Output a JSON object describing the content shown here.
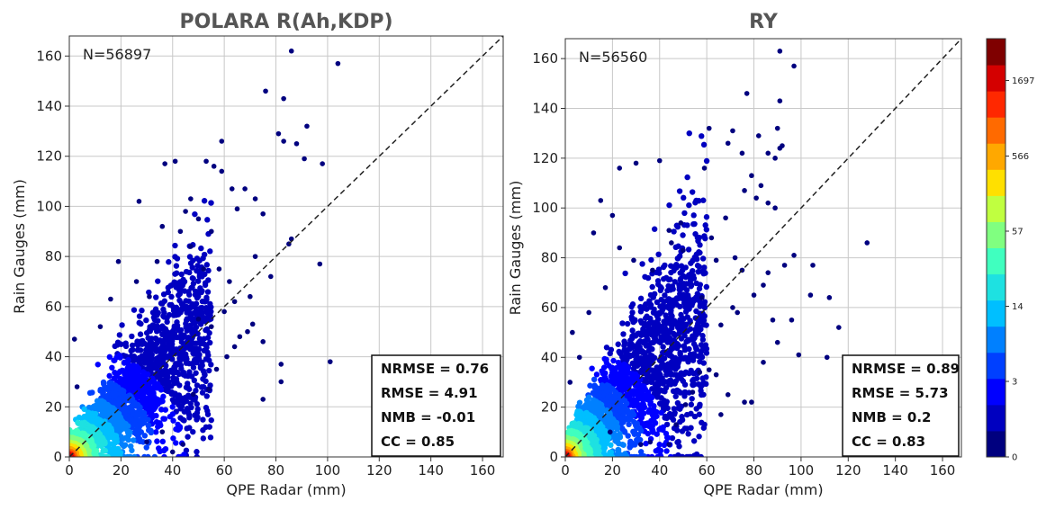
{
  "chart_data": [
    {
      "type": "scatter",
      "title": "POLARA R(Ah,KDP)",
      "xlabel": "QPE Radar (mm)",
      "ylabel": "Rain Gauges (mm)",
      "xlim": [
        0,
        168
      ],
      "ylim": [
        0,
        168
      ],
      "xticks": [
        0,
        20,
        40,
        60,
        80,
        100,
        120,
        140,
        160
      ],
      "yticks": [
        0,
        20,
        40,
        60,
        80,
        100,
        120,
        140,
        160
      ],
      "annotation": "N=56897",
      "stats": [
        "NRMSE = 0.76",
        "RMSE = 4.91",
        "NMB = -0.01",
        "CC = 0.85"
      ],
      "one_to_one_line": true,
      "grid": true,
      "outliers": [
        [
          86,
          162
        ],
        [
          104,
          157
        ],
        [
          76,
          146
        ],
        [
          83,
          143
        ],
        [
          92,
          132
        ],
        [
          81,
          129
        ],
        [
          83,
          126
        ],
        [
          88,
          125
        ],
        [
          91,
          119
        ],
        [
          98,
          117
        ],
        [
          59,
          126
        ],
        [
          41,
          118
        ],
        [
          37,
          117
        ],
        [
          53,
          118
        ],
        [
          56,
          116
        ],
        [
          59,
          114
        ],
        [
          63,
          107
        ],
        [
          68,
          107
        ],
        [
          72,
          103
        ],
        [
          65,
          99
        ],
        [
          75,
          97
        ],
        [
          47,
          103
        ],
        [
          27,
          102
        ],
        [
          86,
          87
        ],
        [
          85,
          85
        ],
        [
          97,
          77
        ],
        [
          101,
          38
        ],
        [
          82,
          37
        ],
        [
          82,
          30
        ],
        [
          75,
          23
        ],
        [
          71,
          53
        ],
        [
          75,
          46
        ],
        [
          66,
          48
        ],
        [
          64,
          44
        ],
        [
          69,
          50
        ],
        [
          60,
          58
        ],
        [
          55,
          52
        ],
        [
          50,
          55
        ],
        [
          64,
          62
        ],
        [
          62,
          70
        ],
        [
          58,
          75
        ],
        [
          72,
          80
        ],
        [
          78,
          72
        ],
        [
          70,
          64
        ],
        [
          52,
          75
        ],
        [
          55,
          90
        ],
        [
          50,
          95
        ],
        [
          47,
          84
        ],
        [
          45,
          98
        ],
        [
          43,
          90
        ],
        [
          36,
          92
        ],
        [
          34,
          78
        ],
        [
          31,
          64
        ],
        [
          26,
          70
        ],
        [
          19,
          78
        ],
        [
          16,
          63
        ],
        [
          12,
          52
        ],
        [
          2,
          47
        ],
        [
          3,
          28
        ],
        [
          57,
          35
        ],
        [
          61,
          40
        ],
        [
          54,
          27
        ],
        [
          48,
          25
        ],
        [
          44,
          5
        ],
        [
          40,
          2
        ],
        [
          36,
          10
        ],
        [
          30,
          6
        ]
      ]
    },
    {
      "type": "scatter",
      "title": "RY",
      "xlabel": "QPE Radar (mm)",
      "ylabel": "Rain Gauges (mm)",
      "xlim": [
        0,
        168
      ],
      "ylim": [
        0,
        168
      ],
      "xticks": [
        0,
        20,
        40,
        60,
        80,
        100,
        120,
        140,
        160
      ],
      "yticks": [
        0,
        20,
        40,
        60,
        80,
        100,
        120,
        140,
        160
      ],
      "annotation": "N=56560",
      "stats": [
        "NRMSE = 0.89",
        "RMSE = 5.73",
        "NMB = 0.2",
        "CC = 0.83"
      ],
      "one_to_one_line": true,
      "grid": true,
      "outliers": [
        [
          91,
          163
        ],
        [
          97,
          157
        ],
        [
          77,
          146
        ],
        [
          90,
          132
        ],
        [
          92,
          125
        ],
        [
          91,
          124
        ],
        [
          89,
          120
        ],
        [
          82,
          129
        ],
        [
          86,
          122
        ],
        [
          91,
          143
        ],
        [
          61,
          132
        ],
        [
          71,
          131
        ],
        [
          69,
          126
        ],
        [
          75,
          122
        ],
        [
          79,
          113
        ],
        [
          83,
          109
        ],
        [
          76,
          107
        ],
        [
          81,
          104
        ],
        [
          86,
          102
        ],
        [
          89,
          100
        ],
        [
          59,
          116
        ],
        [
          40,
          119
        ],
        [
          30,
          118
        ],
        [
          23,
          116
        ],
        [
          15,
          103
        ],
        [
          20,
          97
        ],
        [
          12,
          90
        ],
        [
          49,
          94
        ],
        [
          44,
          91
        ],
        [
          128,
          86
        ],
        [
          105,
          77
        ],
        [
          97,
          81
        ],
        [
          93,
          77
        ],
        [
          112,
          64
        ],
        [
          104,
          65
        ],
        [
          116,
          52
        ],
        [
          111,
          40
        ],
        [
          99,
          41
        ],
        [
          96,
          55
        ],
        [
          90,
          46
        ],
        [
          84,
          38
        ],
        [
          79,
          22
        ],
        [
          76,
          22
        ],
        [
          69,
          25
        ],
        [
          66,
          17
        ],
        [
          64,
          33
        ],
        [
          61,
          35
        ],
        [
          57,
          34
        ],
        [
          54,
          26
        ],
        [
          51,
          21
        ],
        [
          47,
          13
        ],
        [
          44,
          5
        ],
        [
          36,
          6
        ],
        [
          32,
          5
        ],
        [
          19,
          10
        ],
        [
          10,
          58
        ],
        [
          6,
          40
        ],
        [
          3,
          50
        ],
        [
          2,
          30
        ],
        [
          62,
          88
        ],
        [
          68,
          96
        ],
        [
          72,
          80
        ],
        [
          75,
          75
        ],
        [
          64,
          79
        ],
        [
          58,
          64
        ],
        [
          50,
          83
        ],
        [
          45,
          86
        ],
        [
          37,
          75
        ],
        [
          29,
          79
        ],
        [
          23,
          84
        ],
        [
          17,
          68
        ],
        [
          80,
          65
        ],
        [
          84,
          69
        ],
        [
          88,
          55
        ],
        [
          86,
          74
        ],
        [
          71,
          60
        ],
        [
          66,
          53
        ],
        [
          73,
          58
        ]
      ]
    }
  ],
  "colorbar": {
    "ticks": [
      "0",
      "3",
      "14",
      "57",
      "566",
      "1697"
    ],
    "colors": [
      "#00007f",
      "#0000c0",
      "#0000ff",
      "#0040ff",
      "#0080ff",
      "#00bfff",
      "#1ee1e1",
      "#40ffbf",
      "#80ff80",
      "#c0ff40",
      "#ffe000",
      "#ffa800",
      "#ff6a00",
      "#ff2800",
      "#d40000",
      "#7f0000"
    ]
  }
}
